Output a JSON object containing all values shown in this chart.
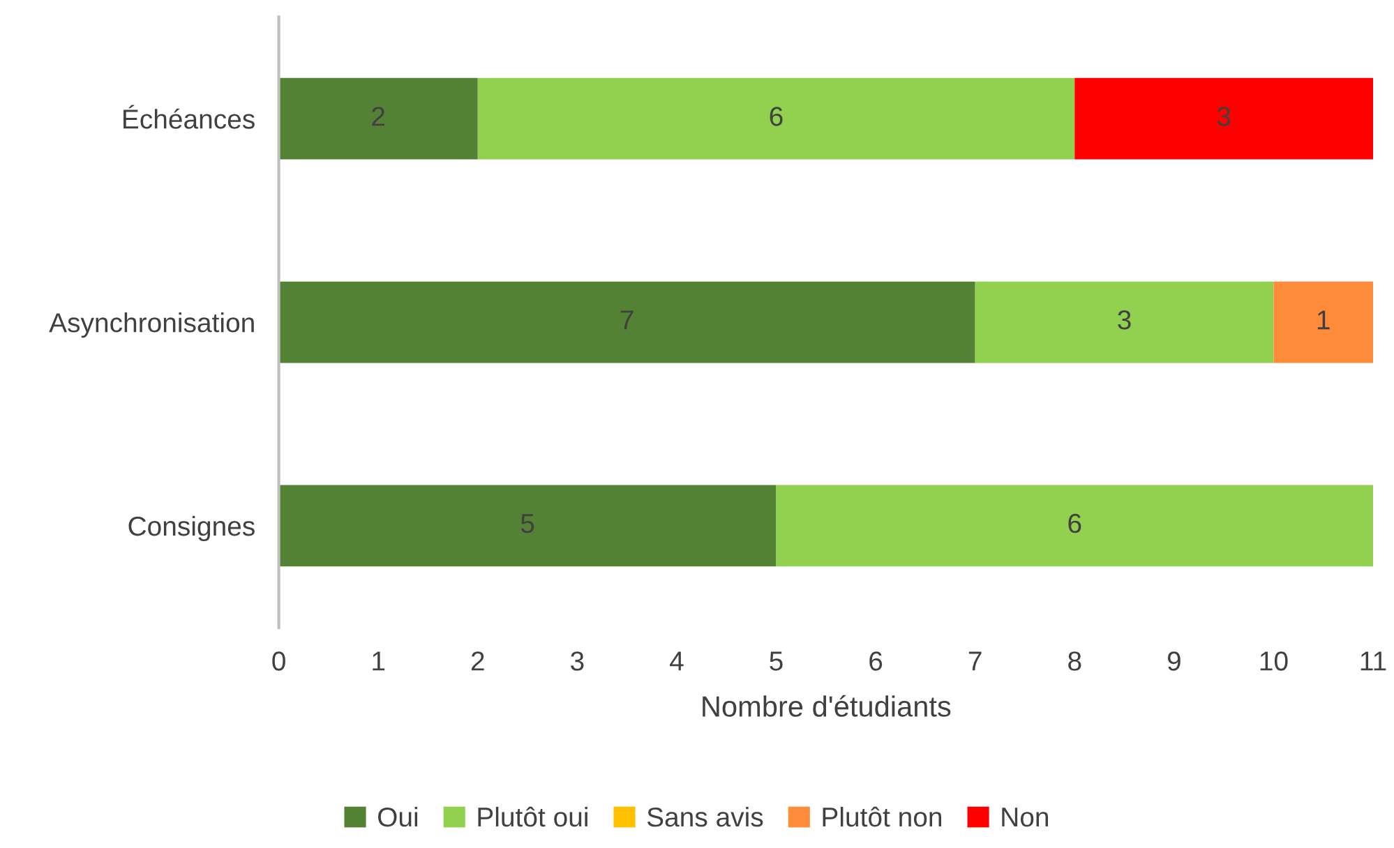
{
  "chart_data": {
    "type": "bar",
    "orientation": "horizontal",
    "stacked": true,
    "categories": [
      "Échéances",
      "Asynchronisation",
      "Consignes"
    ],
    "series": [
      {
        "name": "Oui",
        "color": "#548235",
        "values": [
          2,
          7,
          5
        ]
      },
      {
        "name": "Plutôt oui",
        "color": "#92d050",
        "values": [
          6,
          3,
          6
        ]
      },
      {
        "name": "Sans avis",
        "color": "#ffc000",
        "values": [
          null,
          null,
          null
        ]
      },
      {
        "name": "Plutôt non",
        "color": "#ff8c3a",
        "values": [
          null,
          1,
          null
        ]
      },
      {
        "name": "Non",
        "color": "#ff0000",
        "values": [
          3,
          null,
          null
        ]
      }
    ],
    "xlabel": "Nombre d'étudiants",
    "xlim": [
      0,
      11
    ],
    "xticks": [
      0,
      1,
      2,
      3,
      4,
      5,
      6,
      7,
      8,
      9,
      10,
      11
    ],
    "data_labels": true,
    "grid": false,
    "legend": "bottom"
  }
}
